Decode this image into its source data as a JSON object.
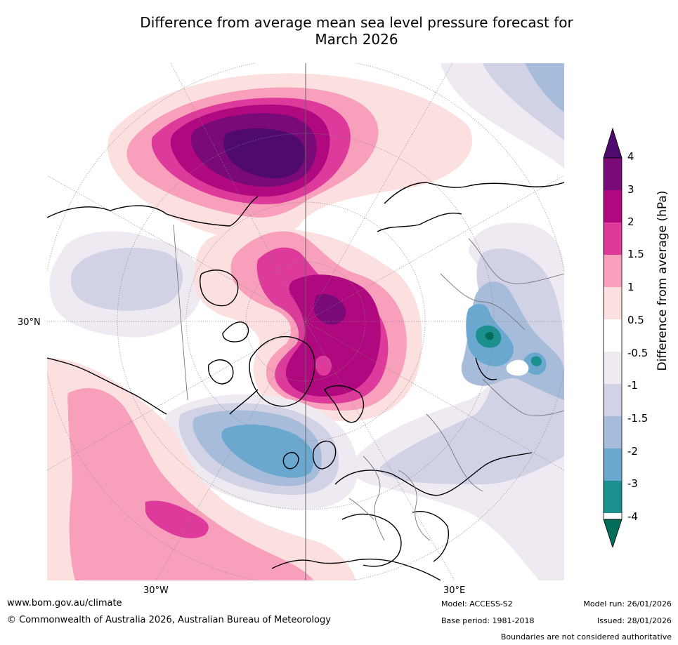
{
  "title_line1": "Difference from average mean sea level pressure forecast for",
  "title_line2": "March 2026",
  "map": {
    "lat_label": "30°N",
    "lon_labels": [
      "30°W",
      "30°E"
    ]
  },
  "colorbar": {
    "title": "Difference from average (hPa)",
    "ticks": [
      "4",
      "3",
      "2",
      "1.5",
      "1",
      "0.5",
      "-0.5",
      "-1",
      "-1.5",
      "-2",
      "-3",
      "-4"
    ],
    "colors": {
      "over": "#4e0a6e",
      "c4": "#7a0a78",
      "c3": "#b0087e",
      "c2": "#de3a9c",
      "c15": "#f79fbb",
      "c1": "#fcdfdf",
      "c05": "#ffffff",
      "cm05": "#efeaf2",
      "cm1": "#d1d2e6",
      "cm15": "#a7bcdb",
      "cm2": "#6aa8cf",
      "cm3": "#1c8f8f",
      "under": "#006e5a"
    }
  },
  "footer": {
    "url": "www.bom.gov.au/climate",
    "copyright": "© Commonwealth of Australia 2026, Australian Bureau of Meteorology",
    "model": "Model: ACCESS-S2",
    "base_period": "Base period: 1981-2018",
    "model_run": "Model run: 26/01/2026",
    "issued": "Issued: 28/01/2026",
    "boundaries": "Boundaries are not considered authoritative"
  }
}
